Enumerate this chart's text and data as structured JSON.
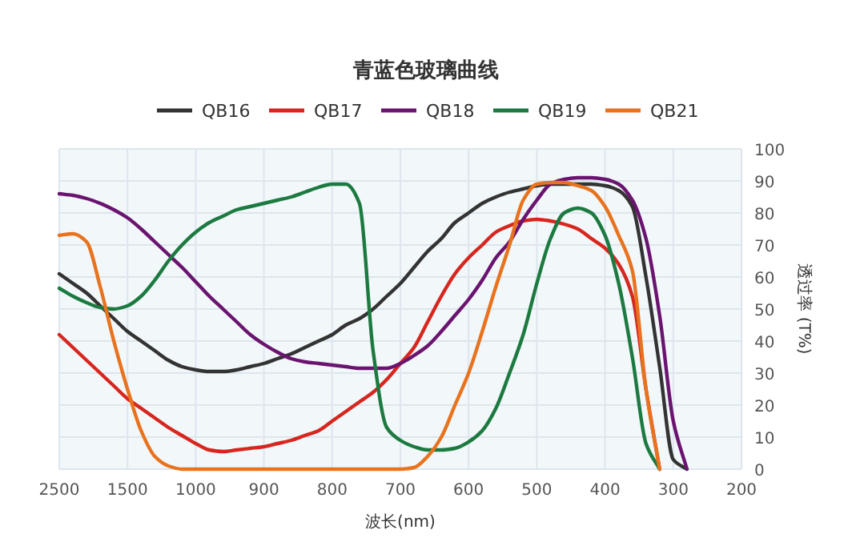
{
  "chart_data": {
    "type": "line",
    "title": "青蓝色玻璃曲线",
    "xlabel": "波长(nm)",
    "ylabel": "透过率 (T%)",
    "categories": [
      "2500",
      null,
      null,
      null,
      null,
      "1500",
      null,
      null,
      null,
      null,
      "1000",
      null,
      null,
      null,
      null,
      "900",
      null,
      null,
      null,
      null,
      "800",
      null,
      null,
      null,
      null,
      "700",
      null,
      null,
      null,
      null,
      "600",
      null,
      null,
      null,
      null,
      "500",
      null,
      null,
      null,
      null,
      "400",
      null,
      null,
      null,
      null,
      "300",
      null,
      null,
      null,
      null,
      "200"
    ],
    "series": [
      {
        "name": "QB16",
        "color": "#333333",
        "values": [
          61,
          58,
          55,
          51,
          47,
          43,
          40,
          37,
          34,
          32,
          31,
          30.5,
          30.5,
          31,
          32,
          33,
          34.5,
          36,
          38,
          40,
          42,
          45,
          47,
          50,
          54,
          58,
          63,
          68,
          72,
          77,
          80,
          83,
          85,
          86.5,
          87.5,
          88.5,
          89,
          89,
          89,
          89,
          88.5,
          87,
          82,
          60,
          32,
          3,
          0,
          null,
          null,
          null,
          null
        ]
      },
      {
        "name": "QB17",
        "color": "#d7261e",
        "values": [
          42,
          38,
          34,
          30,
          26,
          22,
          19,
          16,
          13,
          10.5,
          8,
          6,
          5.5,
          6,
          6.5,
          7,
          8,
          9,
          10.5,
          12,
          15,
          18,
          21,
          24,
          28,
          33,
          38,
          46,
          54,
          61,
          66,
          70,
          74,
          76,
          77.5,
          78,
          77.5,
          76.5,
          75,
          72,
          69,
          64,
          54,
          25,
          0,
          null,
          null,
          null,
          null,
          null,
          null
        ]
      },
      {
        "name": "QB18",
        "color": "#6a1470",
        "values": [
          86,
          85.5,
          84.5,
          83,
          81,
          78.5,
          75,
          71,
          67,
          63,
          58.5,
          54,
          50,
          46,
          42,
          39,
          36.5,
          34.5,
          33.5,
          33,
          32.5,
          32,
          31.5,
          31.5,
          31.5,
          33,
          35.5,
          38.5,
          43,
          48,
          53,
          59,
          66,
          71,
          78,
          84,
          89,
          90.5,
          91,
          91,
          90.5,
          89,
          84,
          72,
          48,
          15,
          0,
          null,
          null,
          null,
          null
        ]
      },
      {
        "name": "QB19",
        "color": "#1c7a40",
        "values": [
          56.5,
          54,
          52,
          50.5,
          50,
          51,
          54,
          59,
          65,
          70,
          74,
          77,
          79,
          81,
          82,
          83,
          84,
          85,
          86.5,
          88,
          89,
          89,
          83,
          37,
          13,
          9,
          7,
          6,
          6,
          6.5,
          8.5,
          12,
          19,
          30,
          42,
          58,
          72,
          80,
          81.5,
          80,
          73,
          58,
          35,
          8,
          0,
          null,
          null,
          null,
          null,
          null,
          null
        ]
      },
      {
        "name": "QB21",
        "color": "#e8731e",
        "values": [
          73,
          73.5,
          71,
          57,
          40,
          25,
          12,
          4,
          1,
          0,
          0,
          0,
          0,
          0,
          0,
          0,
          0,
          0,
          0,
          0,
          0,
          0,
          0,
          0,
          0,
          0,
          0.5,
          4,
          10,
          20,
          30,
          43,
          57,
          70,
          84,
          89,
          89.5,
          89.5,
          88.5,
          87,
          82,
          73,
          62,
          25,
          0,
          null,
          null,
          null,
          null,
          null,
          null
        ]
      }
    ],
    "ylim": [
      0,
      100
    ],
    "yticks": [
      0,
      10,
      20,
      30,
      40,
      50,
      60,
      70,
      80,
      90,
      100
    ],
    "grid": true,
    "legend": "top"
  }
}
